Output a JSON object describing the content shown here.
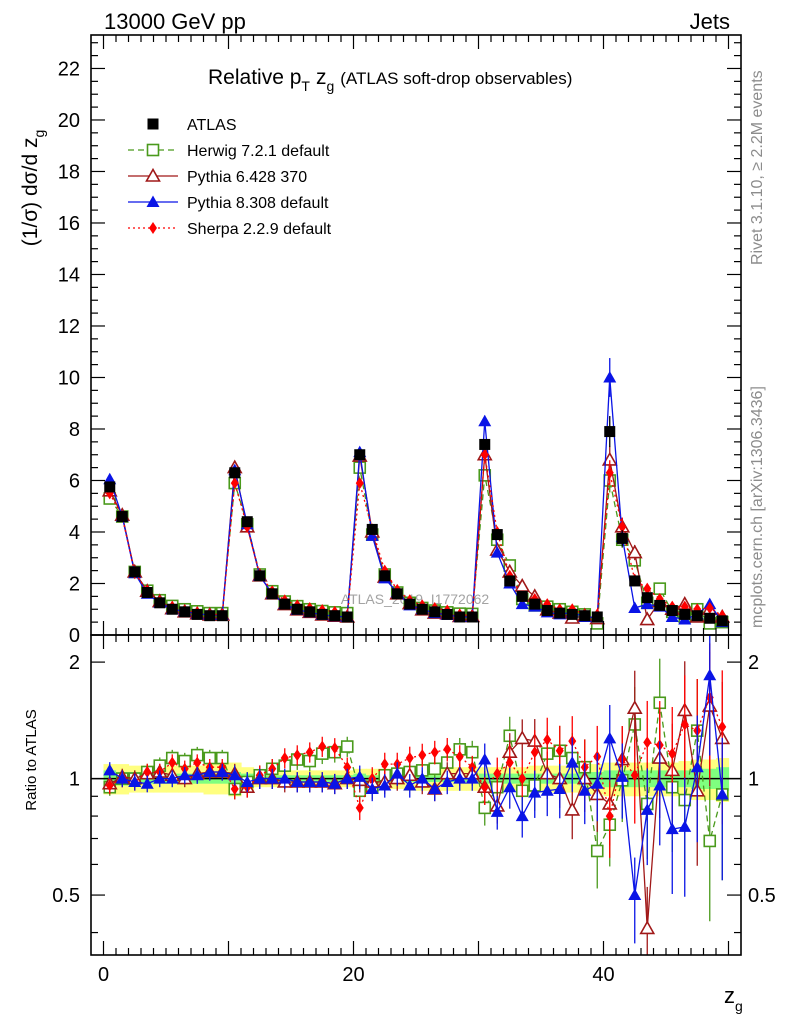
{
  "header": {
    "left": "13000 GeV pp",
    "right": "Jets"
  },
  "plot_title": {
    "main": "Relative p",
    "main_sub": "T",
    "main_z": "z",
    "main_z_sub": "g",
    "paren": "(ATLAS soft-drop observables)"
  },
  "side_labels": {
    "rivet": "Rivet 3.1.10, ≥ 2.2M events",
    "mcplots": "mcplots.cern.ch [arXiv:1306.3436]"
  },
  "watermark": "ATLAS_2019_I1772062",
  "axes": {
    "ylabel_main": "(1/σ) dσ/d z",
    "ylabel_main_sub": "g",
    "ylabel_ratio": "Ratio to ATLAS",
    "xlabel": "z",
    "xlabel_sub": "g",
    "main_yticks": [
      "0",
      "2",
      "4",
      "6",
      "8",
      "10",
      "12",
      "14",
      "16",
      "18",
      "20",
      "22"
    ],
    "ratio_yticks": [
      "0.5",
      "1",
      "2"
    ],
    "xticks": [
      "0",
      "20",
      "40"
    ]
  },
  "colors": {
    "atlas": "#000000",
    "herwig": "#4a9a1c",
    "pythia6": "#a01818",
    "pythia8": "#0a14e6",
    "sherpa": "#ff0000",
    "band_outer": "#ffff80",
    "band_inner": "#7fff7f"
  },
  "chart_data": {
    "type": "scatter",
    "xlim": [
      -1,
      51
    ],
    "ylim_main": [
      0,
      23.3
    ],
    "ylim_ratio": [
      0.35,
      2.35
    ],
    "log_ratio": true,
    "x": [
      0.5,
      1.5,
      2.5,
      3.5,
      4.5,
      5.5,
      6.5,
      7.5,
      8.5,
      9.5,
      10.5,
      11.5,
      12.5,
      13.5,
      14.5,
      15.5,
      16.5,
      17.5,
      18.5,
      19.5,
      20.5,
      21.5,
      22.5,
      23.5,
      24.5,
      25.5,
      26.5,
      27.5,
      28.5,
      29.5,
      30.5,
      31.5,
      32.5,
      33.5,
      34.5,
      35.5,
      36.5,
      37.5,
      38.5,
      39.5,
      40.5,
      41.5,
      42.5,
      43.5,
      44.5,
      45.5,
      46.5,
      47.5,
      48.5,
      49.5
    ],
    "series": [
      {
        "name": "ATLAS",
        "marker": "square-filled",
        "values": [
          5.75,
          4.6,
          2.45,
          1.65,
          1.25,
          1.0,
          0.9,
          0.8,
          0.75,
          0.75,
          6.3,
          4.4,
          2.3,
          1.6,
          1.2,
          1.0,
          0.9,
          0.8,
          0.75,
          0.7,
          7.0,
          4.1,
          2.3,
          1.6,
          1.2,
          1.0,
          0.9,
          0.8,
          0.7,
          0.7,
          7.4,
          3.9,
          2.1,
          1.5,
          1.2,
          0.95,
          0.85,
          0.8,
          0.75,
          0.7,
          7.9,
          3.75,
          2.1,
          1.45,
          1.15,
          0.95,
          0.8,
          0.75,
          0.65,
          0.55
        ]
      },
      {
        "name": "Herwig 7.2.1 default",
        "marker": "square-open",
        "line": "dashed",
        "values": [
          5.3,
          4.6,
          2.45,
          1.72,
          1.35,
          1.13,
          1.0,
          0.92,
          0.85,
          0.85,
          5.9,
          4.3,
          2.35,
          1.7,
          1.3,
          1.12,
          1.0,
          0.93,
          0.88,
          0.85,
          6.5,
          3.9,
          2.35,
          1.65,
          1.25,
          1.05,
          0.95,
          0.88,
          0.83,
          0.82,
          6.2,
          3.7,
          2.7,
          1.4,
          1.15,
          1.1,
          1.0,
          0.9,
          0.8,
          0.45,
          6.0,
          3.7,
          2.9,
          1.25,
          1.8,
          0.9,
          0.7,
          1.0,
          0.45,
          0.5
        ]
      },
      {
        "name": "Pythia 6.428 370",
        "marker": "triangle-open",
        "line": "solid",
        "values": [
          5.6,
          4.65,
          2.45,
          1.7,
          1.3,
          1.02,
          0.9,
          0.82,
          0.78,
          0.78,
          6.5,
          4.2,
          2.3,
          1.6,
          1.18,
          0.98,
          0.88,
          0.78,
          0.73,
          0.7,
          6.95,
          4.0,
          2.25,
          1.6,
          1.22,
          0.98,
          0.85,
          0.82,
          0.72,
          0.72,
          7.0,
          3.3,
          2.45,
          1.9,
          1.5,
          0.98,
          0.85,
          0.66,
          0.75,
          0.64,
          6.8,
          4.2,
          3.2,
          0.6,
          1.3,
          1.0,
          1.2,
          0.7,
          1.0,
          0.7
        ]
      },
      {
        "name": "Pythia 8.308 default",
        "marker": "triangle-filled",
        "line": "solid",
        "values": [
          6.05,
          4.6,
          2.4,
          1.6,
          1.25,
          1.0,
          0.92,
          0.82,
          0.78,
          0.78,
          6.4,
          4.3,
          2.3,
          1.6,
          1.2,
          0.98,
          0.88,
          0.78,
          0.73,
          0.7,
          7.1,
          3.85,
          2.2,
          1.65,
          1.15,
          1.0,
          0.85,
          0.78,
          0.7,
          0.7,
          8.3,
          3.2,
          2.0,
          1.2,
          1.1,
          0.88,
          0.8,
          0.88,
          0.7,
          0.68,
          10.0,
          3.8,
          1.05,
          1.2,
          1.1,
          0.7,
          0.6,
          0.8,
          1.2,
          0.5
        ]
      },
      {
        "name": "Sherpa 2.2.9 default",
        "marker": "diamond-filled",
        "line": "dotted",
        "values": [
          5.5,
          4.6,
          2.4,
          1.72,
          1.3,
          1.1,
          0.95,
          0.88,
          0.8,
          0.8,
          5.9,
          4.2,
          2.35,
          1.7,
          1.35,
          1.15,
          1.05,
          0.97,
          0.9,
          0.75,
          5.9,
          4.1,
          2.5,
          1.75,
          1.35,
          1.15,
          1.05,
          0.95,
          0.8,
          0.75,
          7.0,
          4.0,
          2.3,
          1.5,
          1.4,
          1.2,
          1.0,
          1.0,
          0.8,
          0.8,
          6.3,
          4.2,
          2.15,
          1.8,
          1.4,
          1.1,
          1.1,
          1.0,
          1.05,
          0.75
        ]
      }
    ],
    "ratio_series": [
      {
        "name": "Herwig 7.2.1 default",
        "values": [
          0.95,
          1.0,
          1.0,
          1.04,
          1.08,
          1.13,
          1.11,
          1.15,
          1.13,
          1.13,
          0.94,
          0.98,
          1.02,
          1.06,
          1.08,
          1.12,
          1.11,
          1.16,
          1.17,
          1.21,
          0.93,
          0.95,
          1.02,
          1.03,
          1.04,
          1.05,
          1.06,
          1.1,
          1.19,
          1.17,
          0.84,
          0.95,
          1.29,
          0.93,
          0.96,
          1.16,
          1.18,
          1.13,
          1.07,
          0.65,
          0.76,
          0.99,
          1.38,
          0.86,
          1.57,
          0.95,
          0.88,
          1.33,
          0.69,
          0.91
        ]
      },
      {
        "name": "Pythia 6.428 370",
        "values": [
          0.97,
          1.01,
          1.0,
          1.03,
          1.04,
          1.02,
          1.0,
          1.03,
          1.04,
          1.04,
          1.03,
          0.95,
          1.0,
          1.0,
          0.98,
          0.98,
          0.98,
          0.98,
          0.97,
          1.0,
          0.99,
          0.98,
          0.98,
          1.0,
          1.02,
          0.98,
          0.94,
          1.03,
          1.03,
          1.03,
          0.95,
          0.85,
          1.17,
          1.27,
          1.25,
          1.03,
          1.0,
          0.83,
          1.0,
          0.91,
          0.86,
          1.12,
          1.52,
          0.41,
          1.13,
          1.05,
          1.5,
          0.93,
          1.54,
          1.27
        ]
      },
      {
        "name": "Pythia 8.308 default",
        "values": [
          1.05,
          1.0,
          0.98,
          0.97,
          1.0,
          1.0,
          1.02,
          1.02,
          1.04,
          1.04,
          1.02,
          0.98,
          1.0,
          1.0,
          1.0,
          0.98,
          0.98,
          0.98,
          0.97,
          1.0,
          1.01,
          0.94,
          0.96,
          1.03,
          0.96,
          1.0,
          0.94,
          0.98,
          1.0,
          1.0,
          1.12,
          0.82,
          0.95,
          0.8,
          0.92,
          0.93,
          0.94,
          1.1,
          0.93,
          0.97,
          1.27,
          1.01,
          0.5,
          0.83,
          0.96,
          0.74,
          0.75,
          1.07,
          1.85,
          0.91
        ]
      },
      {
        "name": "Sherpa 2.2.9 default",
        "values": [
          0.96,
          1.0,
          0.98,
          1.04,
          1.04,
          1.1,
          1.06,
          1.1,
          1.07,
          1.07,
          0.94,
          0.95,
          1.02,
          1.06,
          1.13,
          1.15,
          1.17,
          1.21,
          1.2,
          1.07,
          0.84,
          1.0,
          1.09,
          1.09,
          1.13,
          1.15,
          1.17,
          1.19,
          1.14,
          1.07,
          0.95,
          1.03,
          1.1,
          1.0,
          1.17,
          1.26,
          1.18,
          1.25,
          1.07,
          1.14,
          0.8,
          1.12,
          1.02,
          1.24,
          1.22,
          1.16,
          1.38,
          1.33,
          1.62,
          1.36
        ]
      }
    ],
    "ratio_error_half_width": [
      0.05,
      0.05,
      0.05,
      0.05,
      0.05,
      0.05,
      0.05,
      0.05,
      0.05,
      0.05,
      0.06,
      0.06,
      0.06,
      0.06,
      0.06,
      0.06,
      0.06,
      0.06,
      0.06,
      0.06,
      0.07,
      0.07,
      0.07,
      0.07,
      0.07,
      0.07,
      0.07,
      0.07,
      0.07,
      0.07,
      0.1,
      0.1,
      0.12,
      0.12,
      0.14,
      0.14,
      0.16,
      0.16,
      0.18,
      0.2,
      0.22,
      0.22,
      0.25,
      0.28,
      0.3,
      0.32,
      0.34,
      0.36,
      0.38,
      0.4
    ],
    "atlas_band_outer": [
      0.09,
      0.09,
      0.08,
      0.08,
      0.08,
      0.08,
      0.08,
      0.08,
      0.09,
      0.09,
      0.1,
      0.07,
      0.05,
      0.05,
      0.05,
      0.05,
      0.05,
      0.05,
      0.05,
      0.05,
      0.06,
      0.06,
      0.06,
      0.06,
      0.07,
      0.07,
      0.07,
      0.07,
      0.07,
      0.07,
      0.07,
      0.07,
      0.07,
      0.07,
      0.08,
      0.08,
      0.08,
      0.08,
      0.09,
      0.09,
      0.1,
      0.1,
      0.1,
      0.1,
      0.1,
      0.1,
      0.11,
      0.12,
      0.12,
      0.13
    ],
    "atlas_band_inner": [
      0.05,
      0.04,
      0.04,
      0.03,
      0.03,
      0.03,
      0.03,
      0.03,
      0.03,
      0.03,
      0.04,
      0.03,
      0.02,
      0.02,
      0.02,
      0.02,
      0.02,
      0.02,
      0.02,
      0.02,
      0.03,
      0.02,
      0.02,
      0.02,
      0.02,
      0.02,
      0.02,
      0.02,
      0.02,
      0.02,
      0.03,
      0.03,
      0.03,
      0.03,
      0.03,
      0.03,
      0.03,
      0.03,
      0.04,
      0.04,
      0.05,
      0.05,
      0.05,
      0.05,
      0.05,
      0.05,
      0.05,
      0.06,
      0.06,
      0.07
    ]
  }
}
